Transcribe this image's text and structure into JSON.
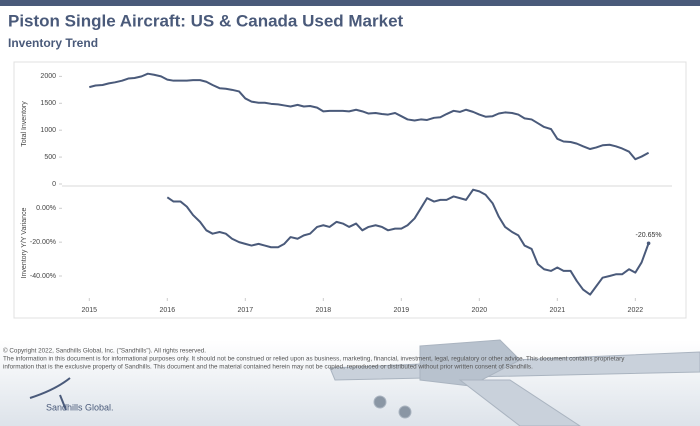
{
  "header": {
    "title": "Piston Single Aircraft:  US & Canada Used Market",
    "subtitle": "Inventory Trend"
  },
  "chart_data": [
    {
      "type": "line",
      "ylabel": "Total Inventory",
      "color": "#4a5a7a",
      "xlim": [
        2014.65,
        2022.47
      ],
      "ylim": [
        0,
        2230
      ],
      "yticks": [
        0,
        500,
        1000,
        1500,
        2000
      ],
      "x": [
        2015.0,
        2015.08,
        2015.17,
        2015.25,
        2015.33,
        2015.42,
        2015.5,
        2015.58,
        2015.67,
        2015.75,
        2015.83,
        2015.92,
        2016.0,
        2016.08,
        2016.17,
        2016.25,
        2016.33,
        2016.42,
        2016.5,
        2016.58,
        2016.67,
        2016.75,
        2016.83,
        2016.92,
        2017.0,
        2017.08,
        2017.17,
        2017.25,
        2017.33,
        2017.42,
        2017.5,
        2017.58,
        2017.67,
        2017.75,
        2017.83,
        2017.92,
        2018.0,
        2018.08,
        2018.17,
        2018.25,
        2018.33,
        2018.42,
        2018.5,
        2018.58,
        2018.67,
        2018.75,
        2018.83,
        2018.92,
        2019.0,
        2019.08,
        2019.17,
        2019.25,
        2019.33,
        2019.42,
        2019.5,
        2019.58,
        2019.67,
        2019.75,
        2019.83,
        2019.92,
        2020.0,
        2020.08,
        2020.17,
        2020.25,
        2020.33,
        2020.42,
        2020.5,
        2020.58,
        2020.67,
        2020.75,
        2020.83,
        2020.92,
        2021.0,
        2021.08,
        2021.17,
        2021.25,
        2021.33,
        2021.42,
        2021.5,
        2021.58,
        2021.67,
        2021.75,
        2021.83,
        2021.92,
        2022.0,
        2022.08,
        2022.17
      ],
      "values": [
        1800,
        1830,
        1840,
        1870,
        1890,
        1920,
        1960,
        1970,
        2000,
        2050,
        2030,
        2000,
        1940,
        1920,
        1920,
        1920,
        1930,
        1930,
        1900,
        1840,
        1780,
        1770,
        1750,
        1720,
        1590,
        1530,
        1510,
        1510,
        1490,
        1480,
        1460,
        1440,
        1470,
        1440,
        1450,
        1420,
        1350,
        1360,
        1360,
        1360,
        1350,
        1380,
        1350,
        1310,
        1320,
        1300,
        1290,
        1320,
        1260,
        1200,
        1180,
        1200,
        1190,
        1230,
        1240,
        1300,
        1360,
        1340,
        1380,
        1340,
        1290,
        1250,
        1260,
        1310,
        1330,
        1320,
        1290,
        1220,
        1200,
        1130,
        1060,
        1020,
        840,
        790,
        780,
        750,
        700,
        650,
        680,
        720,
        730,
        700,
        660,
        600,
        460,
        510,
        580
      ]
    },
    {
      "type": "line",
      "ylabel": "Inventory Y/Y Variance",
      "color": "#4a5a7a",
      "xlim": [
        2014.65,
        2022.47
      ],
      "ylim": [
        -53,
        12
      ],
      "yticks": [
        {
          "value": 0,
          "label": "0.00%"
        },
        {
          "value": -20,
          "label": "-20.00%"
        },
        {
          "value": -40,
          "label": "-40.00%"
        }
      ],
      "xticks": [
        2015,
        2016,
        2017,
        2018,
        2019,
        2020,
        2021,
        2022
      ],
      "x": [
        2016.0,
        2016.08,
        2016.17,
        2016.25,
        2016.33,
        2016.42,
        2016.5,
        2016.58,
        2016.67,
        2016.75,
        2016.83,
        2016.92,
        2017.0,
        2017.08,
        2017.17,
        2017.25,
        2017.33,
        2017.42,
        2017.5,
        2017.58,
        2017.67,
        2017.75,
        2017.83,
        2017.92,
        2018.0,
        2018.08,
        2018.17,
        2018.25,
        2018.33,
        2018.42,
        2018.5,
        2018.58,
        2018.67,
        2018.75,
        2018.83,
        2018.92,
        2019.0,
        2019.08,
        2019.17,
        2019.25,
        2019.33,
        2019.42,
        2019.5,
        2019.58,
        2019.67,
        2019.75,
        2019.83,
        2019.92,
        2020.0,
        2020.08,
        2020.17,
        2020.25,
        2020.33,
        2020.42,
        2020.5,
        2020.58,
        2020.67,
        2020.75,
        2020.83,
        2020.92,
        2021.0,
        2021.08,
        2021.17,
        2021.25,
        2021.33,
        2021.42,
        2021.5,
        2021.58,
        2021.67,
        2021.75,
        2021.83,
        2021.92,
        2022.0,
        2022.08,
        2022.17
      ],
      "values": [
        6.5,
        4,
        4,
        1,
        -4,
        -8,
        -13,
        -15,
        -14,
        -15,
        -18,
        -20,
        -21,
        -22,
        -21,
        -22,
        -23,
        -23,
        -21,
        -17,
        -18,
        -16,
        -15,
        -11,
        -10,
        -11,
        -8,
        -9,
        -11,
        -9,
        -13,
        -11,
        -10,
        -11,
        -13,
        -12,
        -12,
        -10,
        -6,
        0,
        6,
        4,
        5,
        5,
        7,
        6,
        5,
        11,
        10,
        8,
        3,
        -5,
        -11,
        -14,
        -16,
        -22,
        -24,
        -33,
        -36,
        -37,
        -35,
        -37,
        -37,
        -43,
        -48,
        -51,
        -46,
        -41,
        -40,
        -39,
        -39,
        -36,
        -38,
        -32,
        -20.65
      ],
      "value_labels": {
        "74": "-20.65%"
      }
    }
  ],
  "footer": {
    "copyright": "© Copyright 2022, Sandhills Global, Inc. (\"Sandhills\"). All rights reserved.",
    "notice1": "The information in this document is for informational purposes only.  It should not be construed or relied upon as business, marketing, financial, investment, legal, regulatory or other advice. This document contains proprietary",
    "notice2": "information that is the exclusive property of Sandhills. This document and the material contained herein may not be copied, reproduced or distributed without prior written consent of Sandhills.",
    "logo": "Sandhills Global."
  }
}
